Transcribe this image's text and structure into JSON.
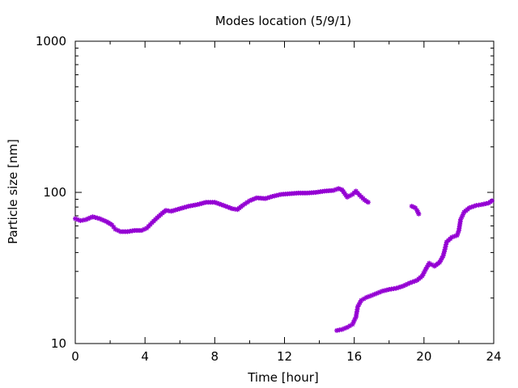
{
  "chart_data": {
    "type": "scatter",
    "title": "Modes location (5/9/1)",
    "xlabel": "Time [hour]",
    "ylabel": "Particle size [nm]",
    "xlim": [
      0,
      24
    ],
    "ylim": [
      10,
      1000
    ],
    "yscale": "log",
    "xticks": [
      0,
      4,
      8,
      12,
      16,
      20,
      24
    ],
    "yticks": [
      10,
      100,
      1000
    ],
    "xtick_labels": [
      "0",
      "4",
      "8",
      "12",
      "16",
      "20",
      "24"
    ],
    "ytick_labels": [
      "10",
      "100",
      "1000"
    ],
    "grid": false,
    "marker_color": "#9400d3",
    "series": [
      {
        "points": [
          [
            0.0,
            67
          ],
          [
            0.3,
            65
          ],
          [
            0.6,
            66
          ],
          [
            1.0,
            69
          ],
          [
            1.4,
            67
          ],
          [
            1.8,
            64
          ],
          [
            2.1,
            61
          ],
          [
            2.3,
            57
          ],
          [
            2.6,
            55
          ],
          [
            3.0,
            55
          ],
          [
            3.4,
            56
          ],
          [
            3.8,
            56
          ],
          [
            4.1,
            58
          ],
          [
            4.4,
            63
          ],
          [
            4.7,
            68
          ],
          [
            5.0,
            73
          ],
          [
            5.2,
            76
          ],
          [
            5.5,
            75
          ],
          [
            6.0,
            78
          ],
          [
            6.5,
            81
          ],
          [
            7.0,
            83
          ],
          [
            7.5,
            86
          ],
          [
            8.0,
            86
          ],
          [
            8.5,
            82
          ],
          [
            9.0,
            78
          ],
          [
            9.3,
            77
          ],
          [
            9.6,
            82
          ],
          [
            10.0,
            88
          ],
          [
            10.4,
            92
          ],
          [
            10.9,
            91
          ],
          [
            11.3,
            94
          ],
          [
            11.8,
            97
          ],
          [
            12.3,
            98
          ],
          [
            12.8,
            99
          ],
          [
            13.3,
            99
          ],
          [
            13.8,
            100
          ],
          [
            14.3,
            102
          ],
          [
            14.8,
            103
          ],
          [
            15.1,
            106
          ],
          [
            15.3,
            104
          ],
          [
            15.6,
            93
          ],
          [
            15.9,
            97
          ],
          [
            16.1,
            102
          ],
          [
            16.3,
            96
          ],
          [
            16.6,
            89
          ],
          [
            16.8,
            86
          ]
        ]
      },
      {
        "points": [
          [
            19.3,
            81
          ],
          [
            19.5,
            79
          ],
          [
            19.6,
            76
          ],
          [
            19.7,
            72
          ]
        ]
      },
      {
        "points": [
          [
            15.0,
            12.2
          ],
          [
            15.3,
            12.4
          ],
          [
            15.6,
            12.8
          ],
          [
            15.9,
            13.4
          ],
          [
            16.1,
            15.0
          ],
          [
            16.2,
            17.5
          ],
          [
            16.4,
            19.3
          ],
          [
            16.7,
            20.2
          ],
          [
            17.0,
            20.8
          ],
          [
            17.3,
            21.5
          ],
          [
            17.6,
            22.2
          ],
          [
            18.0,
            22.8
          ],
          [
            18.4,
            23.2
          ],
          [
            18.8,
            24.0
          ],
          [
            19.2,
            25.2
          ],
          [
            19.6,
            26.2
          ],
          [
            19.9,
            28.0
          ],
          [
            20.1,
            31.0
          ],
          [
            20.3,
            34.0
          ],
          [
            20.6,
            32.5
          ],
          [
            20.9,
            34.5
          ],
          [
            21.1,
            38.0
          ],
          [
            21.2,
            42.0
          ],
          [
            21.3,
            47.0
          ],
          [
            21.6,
            50.5
          ],
          [
            21.9,
            52.0
          ],
          [
            22.0,
            56.0
          ],
          [
            22.1,
            66.0
          ],
          [
            22.3,
            74.0
          ],
          [
            22.6,
            79.0
          ],
          [
            23.0,
            82.0
          ],
          [
            23.3,
            83.0
          ],
          [
            23.7,
            85.0
          ],
          [
            23.9,
            88.0
          ]
        ]
      }
    ]
  }
}
